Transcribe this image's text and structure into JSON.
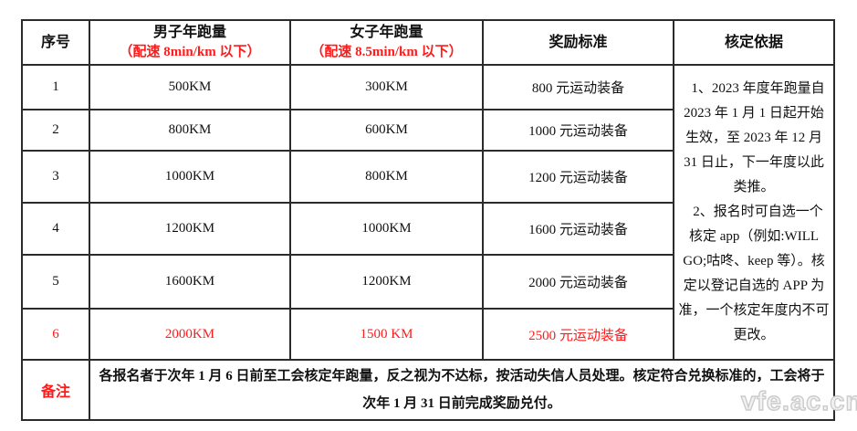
{
  "colors": {
    "accent_red": "#fe1b1b",
    "border": "#2b2b2b",
    "watermark": "#cccccc"
  },
  "watermark": "vfe.ac.cn",
  "table": {
    "headers": [
      {
        "title": "序号",
        "subtitle": ""
      },
      {
        "title": "男子年跑量",
        "subtitle": "（配速 8min/km 以下）"
      },
      {
        "title": "女子年跑量",
        "subtitle": "（配速 8.5min/km 以下）"
      },
      {
        "title": "奖励标准",
        "subtitle": ""
      },
      {
        "title": "核定依据",
        "subtitle": ""
      }
    ],
    "rows": [
      {
        "no": "1",
        "male": "500KM",
        "female": "300KM",
        "reward": "800 元运动装备",
        "highlight": false
      },
      {
        "no": "2",
        "male": "800KM",
        "female": "600KM",
        "reward": "1000 元运动装备",
        "highlight": false
      },
      {
        "no": "3",
        "male": "1000KM",
        "female": "800KM",
        "reward": "1200 元运动装备",
        "highlight": false
      },
      {
        "no": "4",
        "male": "1200KM",
        "female": "1000KM",
        "reward": "1600 元运动装备",
        "highlight": false
      },
      {
        "no": "5",
        "male": "1600KM",
        "female": "1200KM",
        "reward": "2000 元运动装备",
        "highlight": false
      },
      {
        "no": "6",
        "male": "2000KM",
        "female": "1500 KM",
        "reward": "2500 元运动装备",
        "highlight": true
      }
    ],
    "basis_paragraphs": [
      "1、2023 年度年跑量自 2023 年 1 月 1 日起开始生效，至 2023 年 12 月 31 日止，下一年度以此类推。",
      "2、报名时可自选一个核定 app（例如:WILL GO;咕咚、keep 等）。核定以登记自选的 APP 为准，一个核定年度内不可更改。"
    ],
    "note_label": "备注",
    "note_text": "各报名者于次年 1 月 6 日前至工会核定年跑量，反之视为不达标，按活动失信人员处理。核定符合兑换标准的，工会将于次年 1 月 31 日前完成奖励兑付。"
  }
}
